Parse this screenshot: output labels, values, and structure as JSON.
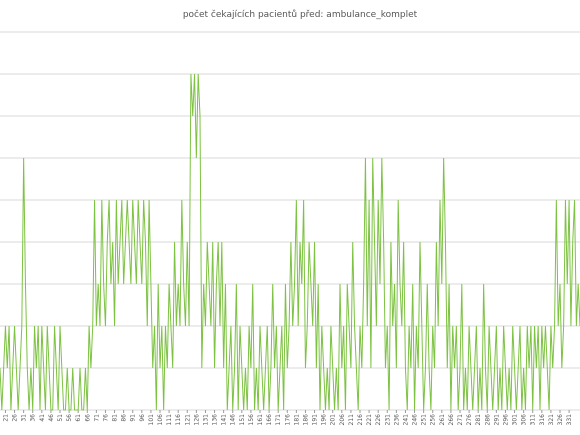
{
  "chart_data": {
    "type": "line",
    "title": "počet čekajících pacientů před:  ambulance_komplet",
    "x": [
      18,
      19,
      20,
      21,
      22,
      23,
      24,
      25,
      26,
      27,
      28,
      29,
      30,
      31,
      32,
      33,
      34,
      35,
      36,
      37,
      38,
      39,
      40,
      41,
      42,
      43,
      44,
      45,
      46,
      47,
      48,
      49,
      50,
      51,
      52,
      53,
      54,
      55,
      56,
      57,
      58,
      59,
      60,
      61,
      62,
      63,
      64,
      65,
      66,
      67,
      68,
      69,
      70,
      71,
      72,
      73,
      74,
      75,
      76,
      77,
      78,
      79,
      80,
      81,
      82,
      83,
      84,
      85,
      86,
      87,
      88,
      89,
      90,
      91,
      92,
      93,
      94,
      95,
      96,
      97,
      98,
      99,
      100,
      101,
      102,
      103,
      104,
      105,
      106,
      107,
      108,
      109,
      110,
      111,
      112,
      113,
      114,
      115,
      116,
      117,
      118,
      119,
      120,
      121,
      122,
      123,
      124,
      125,
      126,
      127,
      128,
      129,
      130,
      131,
      132,
      133,
      134,
      135,
      136,
      137,
      138,
      139,
      140,
      141,
      142,
      143,
      144,
      145,
      146,
      147,
      148,
      149,
      150,
      151,
      152,
      153,
      154,
      155,
      156,
      157,
      158,
      159,
      160,
      161,
      162,
      163,
      164,
      165,
      166,
      167,
      168,
      169,
      170,
      171,
      172,
      173,
      174,
      175,
      176,
      177,
      178,
      179,
      180,
      181,
      182,
      183,
      184,
      185,
      186,
      187,
      188,
      189,
      190,
      191,
      192,
      193,
      194,
      195,
      196,
      197,
      198,
      199,
      200,
      201,
      202,
      203,
      204,
      205,
      206,
      207,
      208,
      209,
      210,
      211,
      212,
      213,
      214,
      215,
      216,
      217,
      218,
      219,
      220,
      221,
      222,
      223,
      224,
      225,
      226,
      227,
      228,
      229,
      230,
      231,
      232,
      233,
      234,
      235,
      236,
      237,
      238,
      239,
      240,
      241,
      242,
      243,
      244,
      245,
      246,
      247,
      248,
      249,
      250,
      251,
      252,
      253,
      254,
      255,
      256,
      257,
      258,
      259,
      260,
      261,
      262,
      263,
      264,
      265,
      266,
      267,
      268,
      269,
      270,
      271,
      272,
      273,
      274,
      275,
      276,
      277,
      278,
      279,
      280,
      281,
      282,
      283,
      284,
      285,
      286,
      287,
      288,
      289,
      290,
      291,
      292,
      293,
      294,
      295,
      296,
      297,
      298,
      299,
      300,
      301,
      302,
      303,
      304,
      305,
      306,
      307,
      308,
      309,
      310,
      311,
      312,
      313,
      314,
      315,
      316,
      317,
      318,
      319,
      320,
      321,
      322,
      323,
      324,
      325,
      326,
      327,
      328,
      329,
      330,
      331,
      332,
      333,
      334,
      335,
      336,
      337
    ],
    "values": [
      1,
      0,
      1,
      2,
      1,
      2,
      0,
      1,
      2,
      1,
      0,
      1,
      2,
      6,
      3,
      1,
      0,
      1,
      0,
      2,
      1,
      2,
      0,
      2,
      1,
      0,
      2,
      1,
      0,
      0,
      2,
      1,
      0,
      2,
      1,
      0,
      0,
      1,
      0,
      0,
      1,
      0,
      0,
      0,
      1,
      0,
      0,
      1,
      0,
      2,
      1,
      2,
      5,
      2,
      3,
      2,
      5,
      3,
      2,
      4,
      5,
      3,
      4,
      2,
      5,
      3,
      4,
      5,
      3,
      4,
      5,
      4,
      3,
      5,
      4,
      3,
      5,
      4,
      3,
      5,
      4,
      2,
      5,
      3,
      1,
      2,
      0,
      3,
      1,
      2,
      0,
      2,
      1,
      3,
      2,
      1,
      4,
      2,
      3,
      2,
      5,
      3,
      2,
      4,
      2,
      8,
      7,
      8,
      6,
      8,
      7,
      1,
      3,
      2,
      4,
      3,
      2,
      4,
      1,
      3,
      4,
      2,
      4,
      1,
      3,
      0,
      1,
      2,
      0,
      1,
      3,
      0,
      2,
      1,
      0,
      1,
      0,
      2,
      1,
      3,
      0,
      1,
      0,
      2,
      1,
      0,
      1,
      2,
      0,
      1,
      3,
      1,
      2,
      0,
      1,
      2,
      0,
      3,
      1,
      2,
      4,
      2,
      3,
      5,
      2,
      4,
      3,
      5,
      1,
      2,
      4,
      3,
      2,
      4,
      1,
      3,
      0,
      2,
      1,
      0,
      1,
      0,
      2,
      1,
      0,
      1,
      0,
      3,
      1,
      2,
      0,
      3,
      2,
      1,
      4,
      2,
      1,
      0,
      2,
      1,
      3,
      6,
      2,
      5,
      1,
      6,
      4,
      2,
      5,
      3,
      6,
      4,
      1,
      2,
      0,
      4,
      2,
      3,
      1,
      5,
      3,
      2,
      4,
      1,
      0,
      2,
      1,
      3,
      0,
      2,
      1,
      4,
      2,
      0,
      1,
      3,
      1,
      0,
      2,
      1,
      4,
      2,
      5,
      3,
      6,
      4,
      1,
      3,
      0,
      2,
      1,
      2,
      0,
      1,
      3,
      0,
      1,
      0,
      2,
      1,
      0,
      1,
      2,
      0,
      1,
      0,
      3,
      1,
      0,
      2,
      1,
      0,
      1,
      2,
      0,
      1,
      0,
      2,
      1,
      0,
      1,
      0,
      2,
      1,
      0,
      1,
      2,
      0,
      1,
      0,
      2,
      1,
      2,
      0,
      2,
      1,
      2,
      0,
      2,
      1,
      2,
      1,
      0,
      2,
      1,
      2,
      5,
      2,
      3,
      1,
      2,
      5,
      3,
      5,
      2,
      4,
      5,
      2,
      3,
      2
    ],
    "color": "#7dc242",
    "xlim": [
      18,
      337
    ],
    "xticks": [
      21,
      26,
      31,
      36,
      41,
      46,
      51,
      56,
      61,
      66,
      71,
      76,
      81,
      86,
      91,
      96,
      101,
      106,
      111,
      116,
      121,
      126,
      131,
      136,
      141,
      146,
      151,
      156,
      161,
      166,
      171,
      176,
      181,
      186,
      191,
      196,
      201,
      206,
      211,
      216,
      221,
      226,
      231,
      236,
      241,
      246,
      251,
      256,
      261,
      266,
      271,
      276,
      281,
      286,
      291,
      296,
      301,
      306,
      311,
      316,
      321,
      326,
      331
    ],
    "ylim": [
      0,
      9
    ],
    "yticks": [
      0,
      1,
      2,
      3,
      4,
      5,
      6,
      7,
      8,
      9
    ],
    "grid": true
  }
}
